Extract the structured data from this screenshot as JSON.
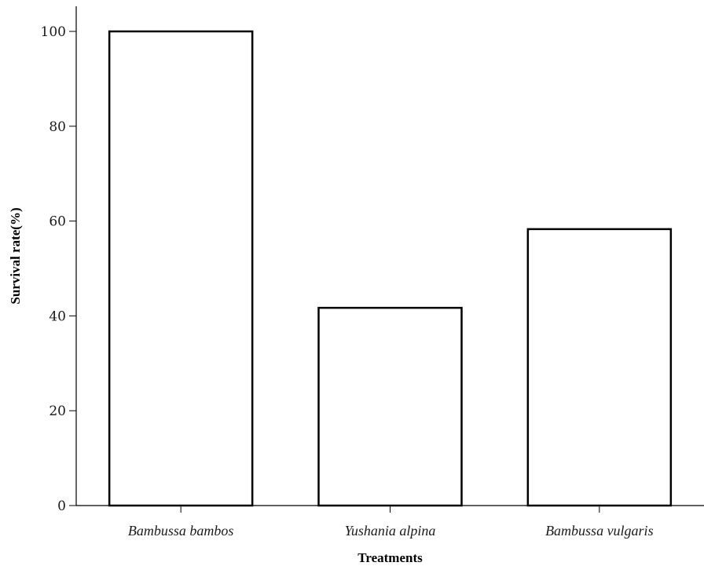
{
  "chart_data": {
    "type": "bar",
    "categories": [
      "Bambussa bambos",
      "Yushania alpina",
      "Bambussa vulgaris"
    ],
    "values": [
      100,
      41.7,
      58.3
    ],
    "xlabel": "Treatments",
    "ylabel": "Survival rate(%)",
    "ylim": [
      0,
      100
    ],
    "yticks": [
      0,
      20,
      40,
      60,
      80,
      100
    ],
    "grid": false,
    "colors": {
      "bar_fill": "#ffffff",
      "bar_stroke": "#000000",
      "axis": "#000000"
    }
  }
}
